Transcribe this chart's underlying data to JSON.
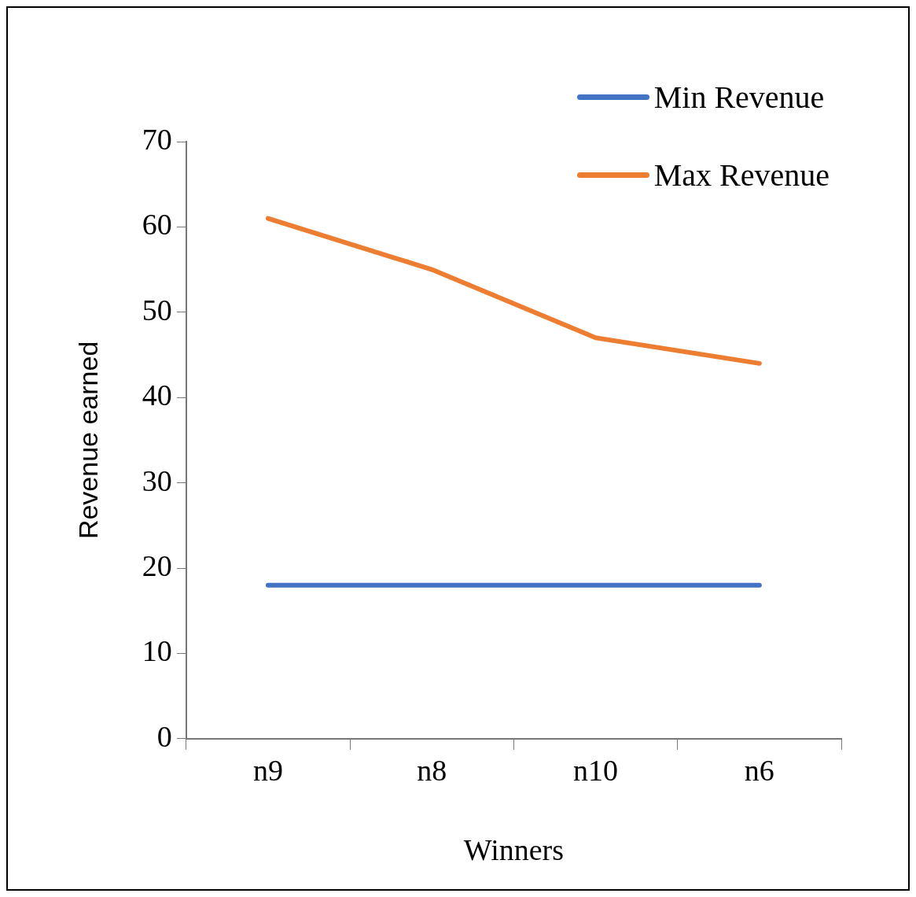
{
  "chart_data": {
    "type": "line",
    "xlabel": "Winners",
    "ylabel": "Revenue earned",
    "categories": [
      "n9",
      "n8",
      "n10",
      "n6"
    ],
    "series": [
      {
        "name": "Min Revenue",
        "color": "#4472c4",
        "values": [
          18,
          18,
          18,
          18
        ]
      },
      {
        "name": "Max Revenue",
        "color": "#ed7d31",
        "values": [
          61,
          55,
          47,
          44
        ]
      }
    ],
    "ylim": [
      0,
      70
    ],
    "yticks": [
      0,
      10,
      20,
      30,
      40,
      50,
      60,
      70
    ],
    "grid": false,
    "legend": "top right",
    "marker": "none",
    "line_style": "solid"
  }
}
